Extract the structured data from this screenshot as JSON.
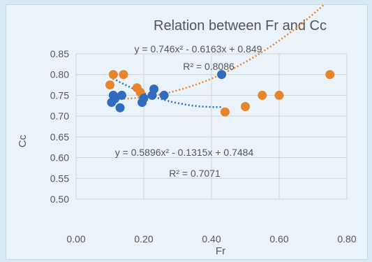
{
  "chart_data": {
    "type": "scatter",
    "title": "Relation between Fr and Cc",
    "xlabel": "Fr",
    "ylabel": "Cc",
    "xlim": [
      0.0,
      0.8
    ],
    "ylim": [
      0.5,
      0.85
    ],
    "xticks": [
      "0.00",
      "0.20",
      "0.40",
      "0.60",
      "0.80"
    ],
    "yticks": [
      "0.50",
      "0.55",
      "0.60",
      "0.65",
      "0.70",
      "0.75",
      "0.80",
      "0.85"
    ],
    "grid": true,
    "legend": "none",
    "series": [
      {
        "color": "#2f6bbf",
        "points": [
          {
            "x": 0.105,
            "y": 0.733
          },
          {
            "x": 0.11,
            "y": 0.75
          },
          {
            "x": 0.115,
            "y": 0.742
          },
          {
            "x": 0.13,
            "y": 0.72
          },
          {
            "x": 0.135,
            "y": 0.75
          },
          {
            "x": 0.195,
            "y": 0.733
          },
          {
            "x": 0.2,
            "y": 0.743
          },
          {
            "x": 0.225,
            "y": 0.75
          },
          {
            "x": 0.23,
            "y": 0.765
          },
          {
            "x": 0.26,
            "y": 0.75
          },
          {
            "x": 0.43,
            "y": 0.8
          }
        ],
        "trendline": {
          "type": "poly2",
          "coef": [
            0.746,
            -0.6163,
            0.849
          ],
          "x_range": [
            0.1,
            0.43
          ]
        },
        "equation_label": "y = 0.746x² - 0.6163x + 0.849",
        "r2_label": "R² = 0.8086"
      },
      {
        "color": "#e8842c",
        "points": [
          {
            "x": 0.1,
            "y": 0.775
          },
          {
            "x": 0.11,
            "y": 0.8
          },
          {
            "x": 0.14,
            "y": 0.8
          },
          {
            "x": 0.18,
            "y": 0.768
          },
          {
            "x": 0.19,
            "y": 0.757
          },
          {
            "x": 0.44,
            "y": 0.71
          },
          {
            "x": 0.5,
            "y": 0.723
          },
          {
            "x": 0.55,
            "y": 0.75
          },
          {
            "x": 0.6,
            "y": 0.75
          },
          {
            "x": 0.75,
            "y": 0.8
          }
        ],
        "trendline": {
          "type": "poly2",
          "coef": [
            0.5896,
            -0.1315,
            0.7484
          ],
          "x_range": [
            0.1,
            0.75
          ]
        },
        "equation_label": "y = 0.5896x² - 0.1315x + 0.7484",
        "r2_label": "R² = 0.7071"
      }
    ]
  }
}
